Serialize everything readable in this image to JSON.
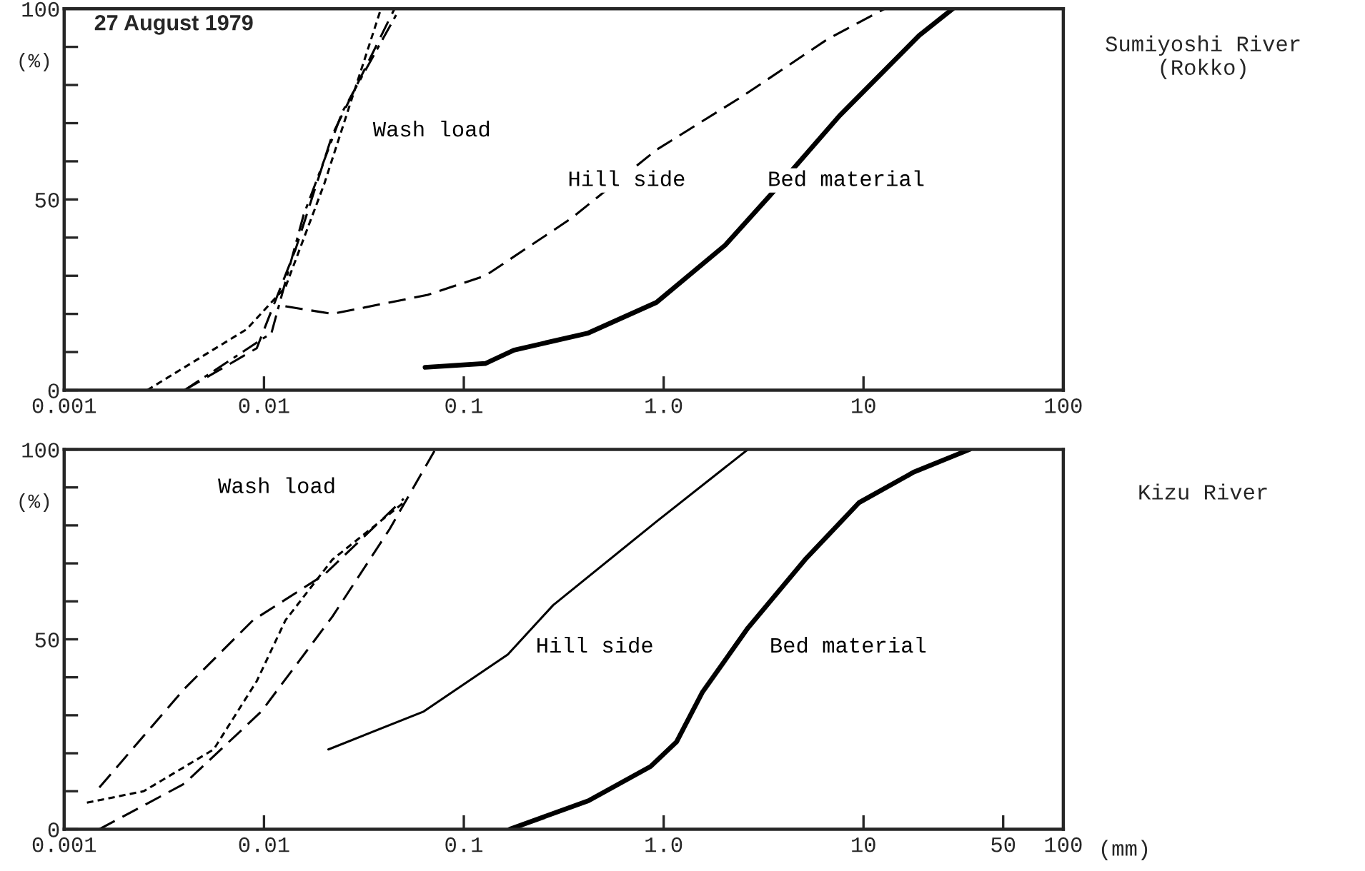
{
  "chart_data": [
    {
      "type": "line",
      "ylabel": "(%)",
      "annotations": [
        "27 August 1979",
        "Sumiyoshi River\n(Rokko)"
      ],
      "xlim": [
        0.001,
        100
      ],
      "ylim": [
        0,
        100
      ],
      "log": "x",
      "xticks": [
        0.001,
        0.01,
        0.1,
        {
          "value": 1,
          "label": "1.0"
        },
        10,
        100
      ],
      "yticks": [
        0,
        {
          "value": 10,
          "label": null
        },
        {
          "value": 20,
          "label": null
        },
        {
          "value": 30,
          "label": null
        },
        {
          "value": 40,
          "label": null
        },
        50,
        {
          "value": 60,
          "label": null
        },
        {
          "value": 70,
          "label": null
        },
        {
          "value": 80,
          "label": null
        },
        {
          "value": 90,
          "label": null
        },
        100
      ],
      "series": [
        {
          "color": "#000000",
          "line_style": "dotted",
          "x": [
            0.0026,
            0.0082,
            0.0128,
            0.02,
            0.0385
          ],
          "values": [
            0,
            16,
            27,
            54,
            100
          ]
        },
        {
          "name": "Wash load",
          "color": "#000000",
          "line_style": "dashdot",
          "x": [
            0.004,
            0.0109,
            0.0158,
            0.0247,
            0.0477
          ],
          "values": [
            0,
            15,
            46,
            73,
            100
          ]
        },
        {
          "color": "#000000",
          "line_style": "dashed",
          "x": [
            0.004,
            0.0092,
            0.0144,
            0.022,
            0.045
          ],
          "values": [
            0,
            11,
            37,
            67,
            100
          ]
        },
        {
          "name": "Hill side",
          "color": "#000000",
          "line_style": "dashed",
          "x": [
            0.0128,
            0.022,
            0.066,
            0.128,
            0.344,
            0.92,
            2.47,
            6.6,
            12.8
          ],
          "values": [
            22,
            20,
            25,
            30,
            45,
            63,
            77,
            92,
            100
          ]
        },
        {
          "name": "Bed material",
          "color": "#000000",
          "line_style": "solid",
          "x": [
            0.064,
            0.128,
            0.178,
            0.42,
            0.92,
            2.03,
            3.4,
            7.6,
            19,
            28
          ],
          "values": [
            6,
            7,
            10.5,
            15,
            23,
            38,
            51,
            72,
            93,
            100
          ]
        }
      ]
    },
    {
      "type": "line",
      "ylabel": "(%)",
      "xlabel": "(mm)",
      "annotations": [
        "Kizu River"
      ],
      "xlim": [
        0.001,
        100
      ],
      "ylim": [
        0,
        100
      ],
      "log": "x",
      "xticks": [
        0.001,
        0.01,
        0.1,
        {
          "value": 1,
          "label": "1.0"
        },
        10,
        50,
        100
      ],
      "yticks": [
        0,
        {
          "value": 10,
          "label": null
        },
        {
          "value": 20,
          "label": null
        },
        {
          "value": 30,
          "label": null
        },
        {
          "value": 40,
          "label": null
        },
        50,
        {
          "value": 60,
          "label": null
        },
        {
          "value": 70,
          "label": null
        },
        {
          "value": 80,
          "label": null
        },
        {
          "value": 90,
          "label": null
        },
        100
      ],
      "series": [
        {
          "name": "Wash load",
          "color": "#000000",
          "line_style": "dashed",
          "x": [
            0.0015,
            0.004,
            0.0088,
            0.02,
            0.05
          ],
          "values": [
            11,
            37,
            55,
            67,
            87
          ]
        },
        {
          "color": "#000000",
          "line_style": "dotted",
          "x": [
            0.0013,
            0.0025,
            0.0056,
            0.0092,
            0.0128,
            0.022,
            0.05
          ],
          "values": [
            7,
            10,
            21,
            39,
            55,
            71,
            86
          ]
        },
        {
          "color": "#000000",
          "line_style": "dashed",
          "x": [
            0.0015,
            0.004,
            0.0097,
            0.022,
            0.0425,
            0.072
          ],
          "values": [
            0,
            12,
            31,
            56,
            79,
            100
          ]
        },
        {
          "name": "Hill side",
          "color": "#000000",
          "line_style": "solid",
          "x": [
            0.021,
            0.063,
            0.166,
            0.28,
            0.92,
            2.64
          ],
          "values": [
            21,
            31,
            46,
            59,
            81,
            100
          ]
        },
        {
          "name": "Bed material",
          "color": "#000000",
          "line_style": "solid",
          "x": [
            0.17,
            0.42,
            0.86,
            1.16,
            1.56,
            2.64,
            5.1,
            9.5,
            17.8,
            34
          ],
          "values": [
            0,
            7.5,
            16.5,
            23,
            36,
            53,
            71,
            86,
            94,
            100
          ]
        }
      ]
    }
  ]
}
